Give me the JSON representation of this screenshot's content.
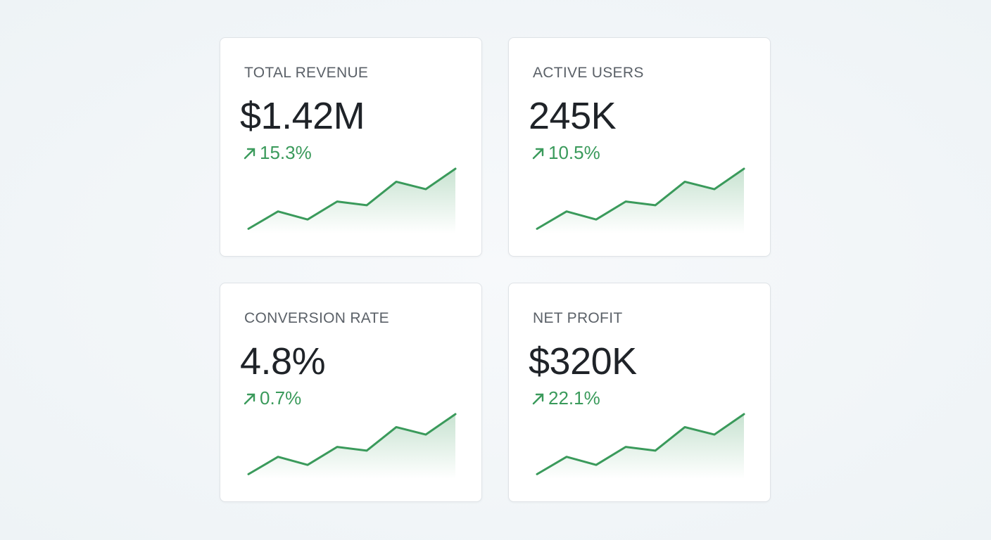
{
  "cards": [
    {
      "label": "TOTAL REVENUE",
      "value": "$1.42M",
      "change": "15.3%",
      "trend": {
        "values": [
          3,
          31,
          18,
          47,
          41,
          79,
          67,
          100
        ],
        "ylim": [
          0,
          100
        ]
      }
    },
    {
      "label": "ACTIVE USERS",
      "value": "245K",
      "change": "10.5%",
      "trend": {
        "values": [
          3,
          31,
          18,
          47,
          41,
          79,
          67,
          100
        ],
        "ylim": [
          0,
          100
        ]
      }
    },
    {
      "label": "CONVERSION RATE",
      "value": "4.8%",
      "change": "0.7%",
      "trend": {
        "values": [
          3,
          31,
          18,
          47,
          41,
          79,
          67,
          100
        ],
        "ylim": [
          0,
          100
        ]
      }
    },
    {
      "label": "NET PROFIT",
      "value": "$320K",
      "change": "22.1%",
      "trend": {
        "values": [
          3,
          31,
          18,
          47,
          41,
          79,
          67,
          100
        ],
        "ylim": [
          0,
          100
        ]
      }
    }
  ]
}
